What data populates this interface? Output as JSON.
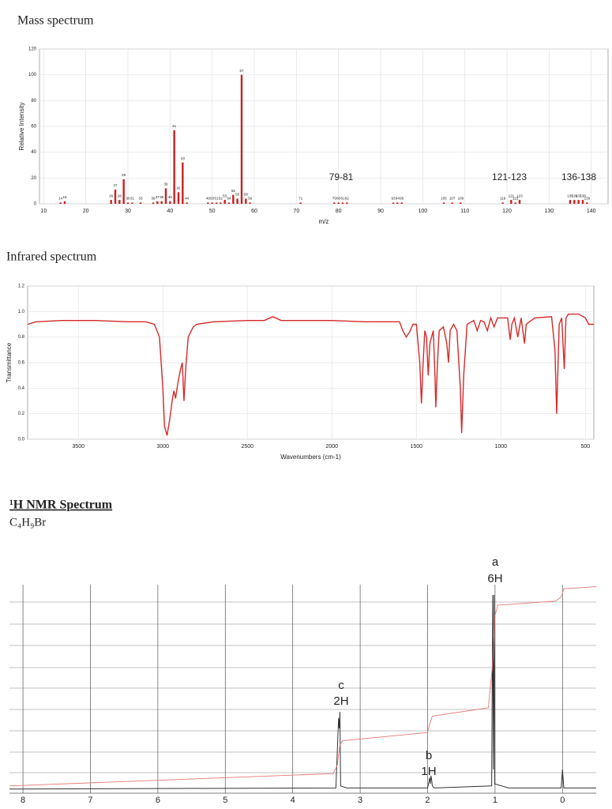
{
  "chart_data": [
    {
      "type": "bar",
      "title": "Mass spectrum",
      "xlabel": "m/z",
      "ylabel": "Relative Intensity",
      "color": "#cc1f1f",
      "x": [
        14,
        15,
        26,
        27,
        28,
        29,
        30,
        31,
        33,
        36,
        37,
        38,
        39,
        40,
        41,
        42,
        43,
        44,
        49,
        50,
        51,
        52,
        53,
        54,
        55,
        56,
        57,
        58,
        59,
        71,
        79,
        80,
        81,
        82,
        93,
        94,
        95,
        105,
        107,
        109,
        119,
        121,
        122,
        123,
        135,
        136,
        137,
        138,
        139
      ],
      "values": [
        1,
        2,
        3,
        11,
        3,
        19,
        1,
        1,
        1,
        1,
        2,
        2,
        12,
        2,
        57,
        9,
        32,
        1,
        1,
        1,
        1,
        1,
        3,
        1,
        7,
        4,
        100,
        4,
        1,
        1,
        1,
        1,
        1,
        1,
        1,
        1,
        1,
        1,
        1,
        1,
        1,
        3,
        1,
        3,
        3,
        3,
        3,
        3,
        1
      ],
      "xlim": [
        9,
        144
      ],
      "xticks": [
        10,
        20,
        30,
        40,
        50,
        60,
        70,
        80,
        90,
        100,
        110,
        120,
        130,
        140
      ],
      "ylim": [
        0,
        120
      ],
      "yticks": [
        0,
        20,
        40,
        60,
        80,
        100,
        120
      ],
      "grid": true,
      "annotations": [
        "79-81",
        "121-123",
        "136-138"
      ]
    },
    {
      "type": "line",
      "title": "Infrared spectrum",
      "xlabel": "Wavenumbers (cm-1)",
      "ylabel": "Transmittance",
      "color": "#d42a2a",
      "x": [
        3800,
        3750,
        3600,
        3400,
        3200,
        3100,
        3050,
        3020,
        3000,
        2990,
        2975,
        2960,
        2945,
        2935,
        2925,
        2910,
        2895,
        2885,
        2875,
        2865,
        2850,
        2820,
        2800,
        2700,
        2500,
        2400,
        2350,
        2300,
        2200,
        2000,
        1800,
        1600,
        1580,
        1560,
        1540,
        1520,
        1500,
        1480,
        1470,
        1460,
        1450,
        1440,
        1430,
        1420,
        1400,
        1390,
        1385,
        1375,
        1365,
        1340,
        1320,
        1310,
        1300,
        1280,
        1260,
        1240,
        1232,
        1220,
        1200,
        1160,
        1140,
        1120,
        1100,
        1080,
        1060,
        1040,
        1020,
        960,
        945,
        935,
        920,
        900,
        880,
        860,
        850,
        800,
        700,
        680,
        670,
        655,
        640,
        625,
        615,
        600,
        540,
        500,
        480,
        450
      ],
      "values": [
        0.9,
        0.92,
        0.93,
        0.93,
        0.92,
        0.92,
        0.9,
        0.8,
        0.4,
        0.1,
        0.03,
        0.15,
        0.3,
        0.38,
        0.32,
        0.45,
        0.55,
        0.6,
        0.3,
        0.55,
        0.8,
        0.88,
        0.9,
        0.92,
        0.93,
        0.93,
        0.96,
        0.93,
        0.93,
        0.93,
        0.92,
        0.92,
        0.85,
        0.8,
        0.84,
        0.9,
        0.9,
        0.6,
        0.28,
        0.6,
        0.85,
        0.8,
        0.5,
        0.75,
        0.85,
        0.5,
        0.25,
        0.6,
        0.85,
        0.88,
        0.75,
        0.6,
        0.85,
        0.9,
        0.85,
        0.4,
        0.05,
        0.5,
        0.9,
        0.93,
        0.85,
        0.93,
        0.92,
        0.85,
        0.95,
        0.88,
        0.95,
        0.95,
        0.78,
        0.9,
        0.95,
        0.8,
        0.95,
        0.75,
        0.9,
        0.95,
        0.96,
        0.7,
        0.2,
        0.9,
        0.95,
        0.55,
        0.95,
        0.98,
        0.98,
        0.95,
        0.9,
        0.9
      ],
      "xlim": [
        3800,
        450
      ],
      "xticks": [
        3500,
        3000,
        2500,
        2000,
        1500,
        1000,
        500
      ],
      "ylim": [
        0,
        1.2
      ],
      "yticks": [
        {
          "value": 0,
          "label": "0.0"
        },
        0.2,
        0.4,
        0.6,
        0.8,
        {
          "value": 1,
          "label": "1.0"
        },
        1.2
      ],
      "grid": true
    },
    {
      "type": "line",
      "title": "¹H NMR Spectrum",
      "subtitle": "C₄H₉Br",
      "xlim": [
        8.2,
        -0.5
      ],
      "xticks": [
        8,
        7,
        6,
        5,
        4,
        3,
        2,
        1,
        0
      ],
      "ylim": [
        0,
        100
      ],
      "grid": true,
      "series": [
        {
          "color": "#333333",
          "x": [
            8.2,
            3.36,
            3.32,
            3.31,
            3.3,
            3.29,
            3.2,
            2.0,
            1.98,
            1.97,
            1.96,
            1.95,
            1.94,
            1.93,
            1.9,
            1.05,
            1.035,
            1.025,
            1.015,
            1.005,
            0.8,
            0.02,
            0.0,
            -0.02,
            -0.5
          ],
          "values": [
            0.5,
            1,
            35,
            30,
            38,
            2,
            1,
            1,
            4,
            6,
            3,
            7,
            5,
            2,
            1,
            2,
            95,
            10,
            95,
            3,
            1,
            1,
            10,
            1,
            1
          ]
        },
        {
          "color": "#e87878",
          "x": [
            8.2,
            3.4,
            3.34,
            3.3,
            3.26,
            2.0,
            1.97,
            1.93,
            1.1,
            1.04,
            1.0,
            0.96,
            0.1,
            0.02,
            -0.02,
            -0.5
          ],
          "values": [
            2,
            8,
            12,
            22,
            24,
            28,
            32,
            36,
            40,
            60,
            85,
            90,
            92,
            94,
            98,
            99
          ]
        }
      ],
      "annotations": [
        "a",
        "6H",
        "c",
        "2H",
        "b",
        "1H"
      ]
    }
  ]
}
